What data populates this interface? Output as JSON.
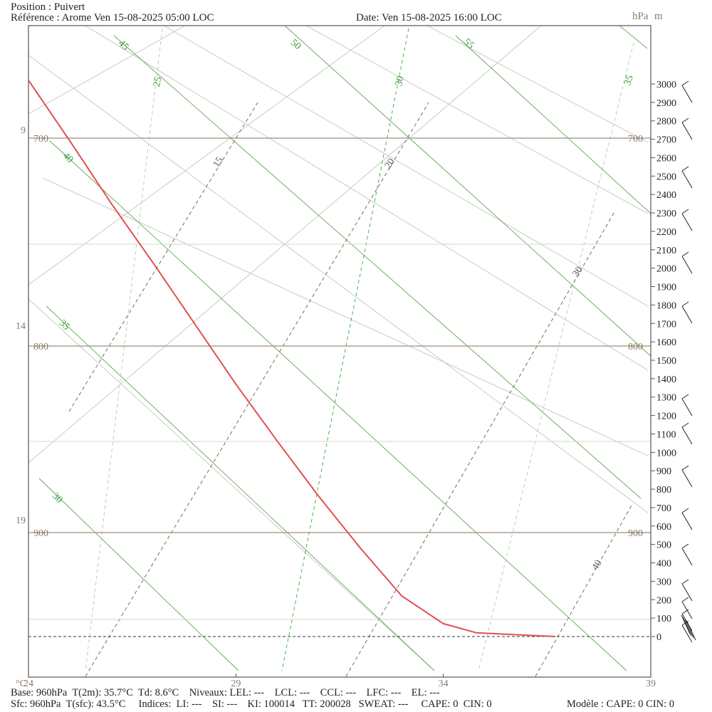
{
  "header": {
    "position": "Position : Puivert",
    "reference": "Référence : Arome Ven 15-08-2025 05:00 LOC",
    "date": "Date: Ven 15-08-2025 16:00 LOC",
    "unit_hpa": "hPa",
    "unit_m": "m"
  },
  "footer": {
    "line1": "Base: 960hPa  T(2m): 35.7°C  Td: 8.6°C    Niveaux: LEL: ---    LCL: ---    CCL: ---    LFC: ---    EL: ---",
    "line2": "Sfc: 960hPa  T(sfc): 43.5°C     Indices:  LI: ---    SI: ---    KI: 100014   TT: 200028   SWEAT: ---     CAPE: 0  CIN: 0",
    "model": "Modèle : CAPE: 0 CIN: 0"
  },
  "colors": {
    "profile": "#e05050",
    "isobar": "#9a9078",
    "dry_adiabat": "#5aaa4a",
    "moist_adiabat": "#c4c4c4",
    "mixing_ratio": "#3aaa3a",
    "isotherm": "#6a5a50",
    "frame": "#555555"
  },
  "chart_data": {
    "type": "line",
    "title": "",
    "xlabel": "°C",
    "ylabel": "",
    "x_axis": {
      "unit": "°C",
      "ticks": [
        24,
        29,
        34,
        39
      ],
      "range": [
        24,
        39
      ]
    },
    "pressure_axis": {
      "unit": "hPa",
      "isobars": [
        700,
        800,
        900
      ]
    },
    "left_axis_ticks": [
      9,
      14,
      19
    ],
    "altitude_axis": {
      "unit": "m",
      "ticks": [
        0,
        100,
        200,
        300,
        400,
        500,
        600,
        700,
        800,
        900,
        1000,
        1100,
        1200,
        1300,
        1400,
        1500,
        1600,
        1700,
        1800,
        1900,
        2000,
        2100,
        2200,
        2300,
        2400,
        2500,
        2600,
        2700,
        2800,
        2900,
        3000
      ]
    },
    "dry_adiabat_labels": [
      "30",
      "35",
      "40",
      "45",
      "50",
      "55"
    ],
    "mixing_ratio_labels": [
      "25",
      "30",
      "35"
    ],
    "isotherm_labels": [
      "15",
      "20",
      "30",
      "40"
    ],
    "series": [
      {
        "points": [
          [
            24.0,
            3020
          ],
          [
            25.0,
            2690
          ],
          [
            26.0,
            2350
          ],
          [
            27.0,
            2030
          ],
          [
            28.0,
            1700
          ],
          [
            29.0,
            1370
          ],
          [
            30.0,
            1060
          ],
          [
            31.0,
            760
          ],
          [
            32.0,
            480
          ],
          [
            33.0,
            220
          ],
          [
            34.0,
            70
          ],
          [
            34.8,
            20
          ],
          [
            36.7,
            0
          ]
        ]
      }
    ]
  }
}
